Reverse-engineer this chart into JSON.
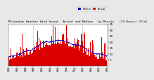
{
  "title": "Milwaukee Weather Wind Speed  Actual and Median  by Minute  (24 Hours) (Old)",
  "n_points": 1440,
  "bar_color": "#dd0000",
  "median_color": "#0000cc",
  "bg_color": "#e8e8e8",
  "plot_bg": "#ffffff",
  "ylim": [
    0,
    35
  ],
  "yticks": [
    5,
    10,
    15,
    20,
    25,
    30,
    35
  ],
  "ylabel_fontsize": 3.0,
  "xlabel_fontsize": 2.5,
  "title_fontsize": 3.0,
  "seed": 42,
  "grid_hours": [
    6,
    12,
    18
  ],
  "legend_median_color": "#0000cc",
  "legend_actual_color": "#dd0000"
}
